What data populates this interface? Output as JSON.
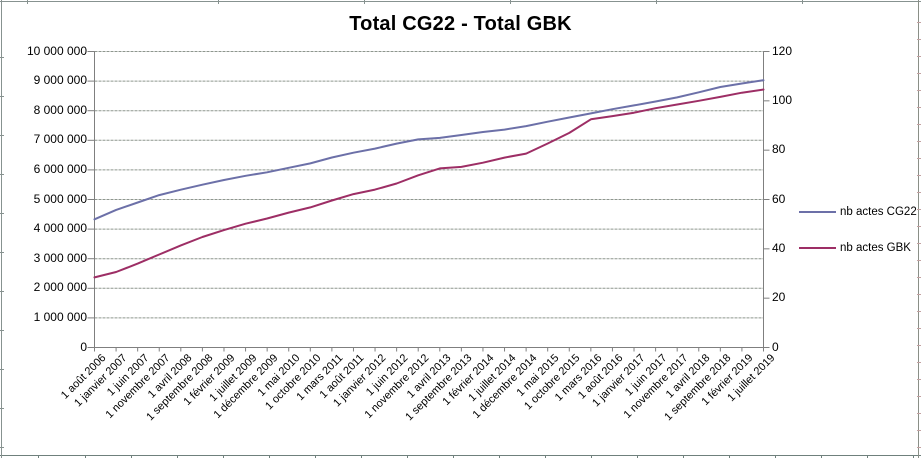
{
  "chart_data": {
    "type": "line",
    "title": "Total CG22 - Total GBK",
    "grid": true,
    "legend_position": "right",
    "categories": [
      "1 août 2006",
      "1 janvier 2007",
      "1 juin 2007",
      "1 novembre 2007",
      "1 avril 2008",
      "1 septembre 2008",
      "1 février 2009",
      "1 juillet 2009",
      "1 décembre 2009",
      "1 mai 2010",
      "1 octobre 2010",
      "1 mars 2011",
      "1 août 2011",
      "1 janvier 2012",
      "1 juin 2012",
      "1 novembre 2012",
      "1 avril 2013",
      "1 septembre 2013",
      "1 février 2014",
      "1 juillet 2014",
      "1 décembre 2014",
      "1 mai 2015",
      "1 octobre 2015",
      "1 mars 2016",
      "1 août 2016",
      "1 janvier 2017",
      "1 juin 2017",
      "1 novembre 2017",
      "1 avril 2018",
      "1 septembre 2018",
      "1 février 2019",
      "1 juillet 2019"
    ],
    "series": [
      {
        "name": "nb actes CG22",
        "axis": "left",
        "color": "#6C70A8",
        "values": [
          4330000,
          4650000,
          4900000,
          5150000,
          5330000,
          5500000,
          5660000,
          5800000,
          5920000,
          6070000,
          6220000,
          6420000,
          6580000,
          6720000,
          6890000,
          7030000,
          7080000,
          7180000,
          7280000,
          7360000,
          7480000,
          7630000,
          7770000,
          7910000,
          8050000,
          8180000,
          8310000,
          8450000,
          8620000,
          8800000,
          8920000,
          9030000
        ]
      },
      {
        "name": "nb actes GBK",
        "axis": "right",
        "color": "#9D2E65",
        "values": [
          28.4,
          30.6,
          34.0,
          37.7,
          41.4,
          44.8,
          47.6,
          50.2,
          52.3,
          54.7,
          56.8,
          59.6,
          62.2,
          64.0,
          66.5,
          69.8,
          72.6,
          73.2,
          74.9,
          77.0,
          78.6,
          82.7,
          87.0,
          92.5,
          93.8,
          95.2,
          97.0,
          98.5,
          100.0,
          101.6,
          103.3,
          104.6
        ]
      }
    ],
    "axes": {
      "left": {
        "min": 0,
        "max": 10000000,
        "tick_labels": [
          "10 000 000",
          "9 000 000",
          "8 000 000",
          "7 000 000",
          "6 000 000",
          "5 000 000",
          "4 000 000",
          "3 000 000",
          "2 000 000",
          "1 000 000",
          "0"
        ]
      },
      "right": {
        "min": 0,
        "max": 120,
        "tick_labels": [
          "120",
          "100",
          "80",
          "60",
          "40",
          "20",
          "0"
        ]
      }
    },
    "colors": {
      "gridline": "#8E968E",
      "axis": "#7F7F7F",
      "background": "#FFFFFF"
    }
  }
}
